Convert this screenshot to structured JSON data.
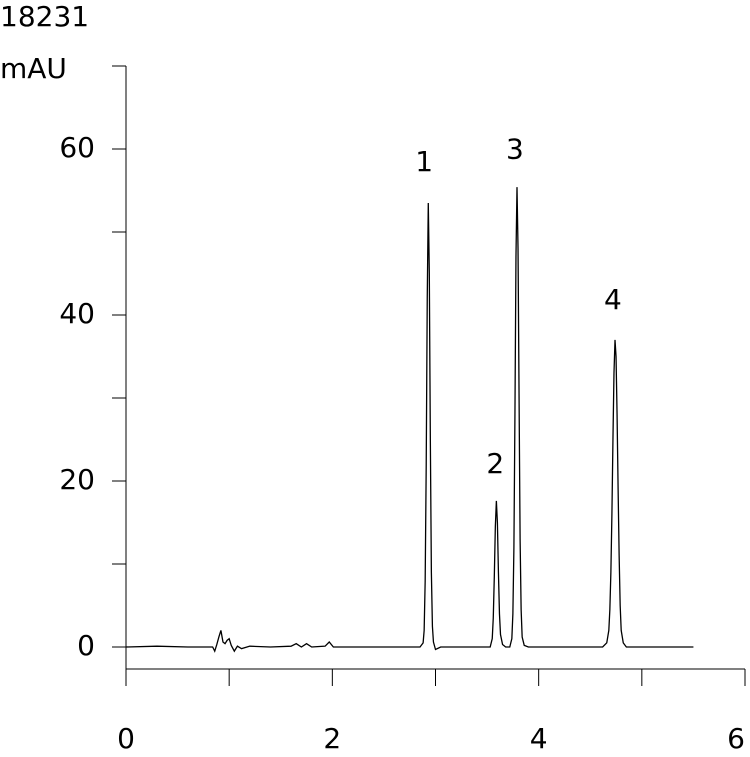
{
  "chart_data": {
    "type": "line",
    "title": "18231",
    "ylabel": "mAU",
    "color": "#000000",
    "xlim": [
      0,
      6
    ],
    "xticks": [
      0,
      2,
      4,
      6
    ],
    "xminor": [
      1,
      3,
      5
    ],
    "ylim": [
      -2.65,
      70
    ],
    "yticks": [
      0,
      20,
      40,
      60
    ],
    "yminor": [
      10,
      30,
      50,
      70
    ],
    "annotations": [
      {
        "text": "1",
        "x": 2.89,
        "y": 58.3
      },
      {
        "text": "2",
        "x": 3.58,
        "y": 21.9
      },
      {
        "text": "3",
        "x": 3.77,
        "y": 59.8
      },
      {
        "text": "4",
        "x": 4.72,
        "y": 41.7
      }
    ],
    "x": [
      0,
      0.3,
      0.6,
      0.84,
      0.86,
      0.88,
      0.9,
      0.92,
      0.94,
      0.96,
      0.98,
      1.0,
      1.02,
      1.05,
      1.08,
      1.12,
      1.2,
      1.4,
      1.6,
      1.65,
      1.7,
      1.75,
      1.8,
      1.93,
      1.97,
      2.01,
      2.3,
      2.6,
      2.85,
      2.88,
      2.89,
      2.9,
      2.91,
      2.92,
      2.93,
      2.94,
      2.95,
      2.96,
      2.97,
      2.98,
      3.0,
      3.05,
      3.3,
      3.53,
      3.55,
      3.56,
      3.57,
      3.58,
      3.59,
      3.6,
      3.61,
      3.62,
      3.63,
      3.65,
      3.68,
      3.72,
      3.74,
      3.75,
      3.76,
      3.77,
      3.78,
      3.79,
      3.8,
      3.81,
      3.82,
      3.83,
      3.84,
      3.86,
      3.9,
      4.2,
      4.5,
      4.62,
      4.66,
      4.68,
      4.69,
      4.7,
      4.71,
      4.72,
      4.73,
      4.74,
      4.75,
      4.76,
      4.77,
      4.78,
      4.79,
      4.8,
      4.82,
      4.85,
      5.2,
      5.5
    ],
    "y": [
      0,
      0.1,
      0,
      0,
      -0.5,
      0.3,
      1.2,
      2,
      0.6,
      0.4,
      0.8,
      1,
      0.2,
      -0.5,
      0.1,
      -0.2,
      0.1,
      0,
      0.1,
      0.4,
      0,
      0.4,
      0,
      0.1,
      0.6,
      0,
      0,
      0,
      0,
      0.5,
      2,
      8,
      22,
      42,
      53.5,
      45,
      25,
      9,
      2.5,
      0.6,
      -0.3,
      0,
      0,
      0,
      1,
      3.5,
      8.5,
      14.5,
      17.6,
      15,
      9,
      4,
      1.5,
      0.3,
      0,
      0,
      1,
      4,
      12,
      28,
      47,
      55.4,
      48,
      30,
      13,
      4.5,
      1.2,
      0.2,
      0,
      0,
      0,
      0,
      0.5,
      2,
      4.5,
      9,
      16,
      25,
      33,
      37,
      35,
      28,
      19,
      11,
      5,
      2,
      0.5,
      0,
      0,
      0
    ]
  }
}
